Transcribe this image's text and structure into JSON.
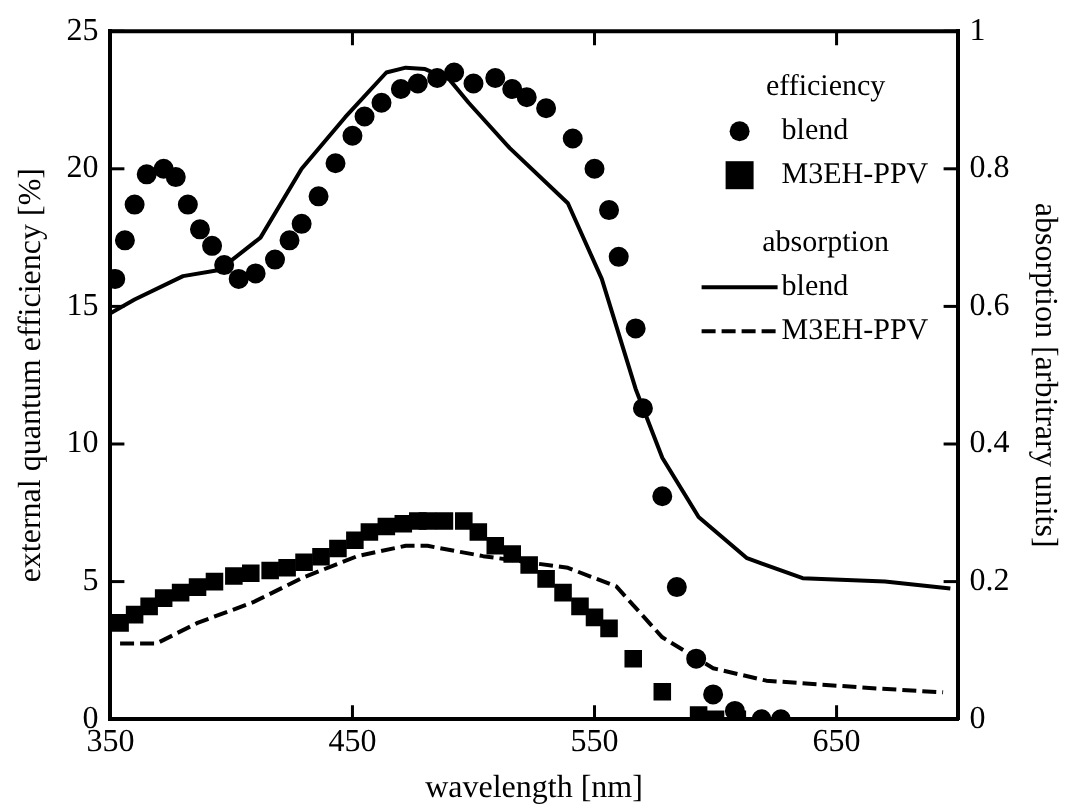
{
  "chart_data": {
    "type": "line",
    "xlabel": "wavelength [nm]",
    "ylabel": "external quantum efficiency [%]",
    "y2label": "absorption [arbitrary units]",
    "xlim": [
      350,
      700
    ],
    "xticks": [
      350,
      450,
      550,
      650
    ],
    "ylim": [
      0,
      25
    ],
    "yticks": [
      0,
      5,
      10,
      15,
      20,
      25
    ],
    "y2lim": [
      0,
      1
    ],
    "y2ticks": [
      0,
      0.2,
      0.4,
      0.6,
      0.8,
      1
    ],
    "legend": "top right",
    "annotations": [
      "efficiency",
      "absorption"
    ],
    "grid": false,
    "series": [
      {
        "name": "blend",
        "type": "scatter",
        "marker": "circle",
        "color": "#000000",
        "x": [
          352,
          356,
          360,
          365,
          372,
          377,
          382,
          387,
          392,
          397,
          403,
          410,
          418,
          424,
          429,
          436,
          443,
          450,
          455,
          462,
          470,
          477,
          485,
          492,
          500,
          509,
          516,
          522,
          530,
          541,
          550,
          556,
          560,
          567,
          570,
          578,
          584,
          592,
          599,
          608,
          619,
          627
        ],
        "values": [
          16.0,
          17.4,
          18.7,
          19.8,
          20.0,
          19.7,
          18.7,
          17.8,
          17.2,
          16.5,
          16.0,
          16.2,
          16.7,
          17.4,
          18.0,
          19.0,
          20.2,
          21.2,
          21.9,
          22.4,
          22.9,
          23.1,
          23.3,
          23.5,
          23.1,
          23.3,
          22.9,
          22.6,
          22.2,
          21.1,
          20.0,
          18.5,
          16.8,
          14.2,
          11.3,
          8.1,
          4.8,
          2.2,
          0.9,
          0.3,
          0.0,
          0.0
        ]
      },
      {
        "name": "M3EH-PPV",
        "type": "scatter",
        "marker": "square",
        "color": "#000000",
        "x": [
          354,
          360,
          366,
          372,
          379,
          386,
          393,
          401,
          408,
          416,
          423,
          430,
          437,
          444,
          451,
          457,
          464,
          471,
          477,
          481,
          488,
          496,
          502,
          509,
          516,
          523,
          530,
          537,
          544,
          550,
          556,
          566,
          578,
          593,
          600,
          609
        ],
        "values": [
          3.5,
          3.8,
          4.1,
          4.4,
          4.6,
          4.8,
          5.0,
          5.2,
          5.3,
          5.4,
          5.5,
          5.7,
          5.9,
          6.2,
          6.5,
          6.8,
          7.0,
          7.1,
          7.2,
          7.2,
          7.2,
          7.2,
          6.8,
          6.3,
          6.0,
          5.6,
          5.1,
          4.6,
          4.1,
          3.7,
          3.3,
          2.2,
          1.0,
          0.15,
          0.0,
          0.0
        ]
      },
      {
        "name": "blend",
        "line_style": "solid",
        "axis": "y2",
        "color": "#000000",
        "x": [
          350,
          360,
          380,
          395,
          412,
          429,
          447,
          464,
          472,
          480,
          490,
          498,
          515,
          539,
          553,
          567,
          578,
          593,
          613,
          636,
          670,
          697
        ],
        "values": [
          0.59,
          0.61,
          0.644,
          0.653,
          0.7,
          0.8,
          0.875,
          0.94,
          0.947,
          0.945,
          0.93,
          0.896,
          0.83,
          0.75,
          0.64,
          0.48,
          0.38,
          0.294,
          0.234,
          0.205,
          0.2,
          0.19
        ]
      },
      {
        "name": "M3EH-PPV",
        "line_style": "dashed",
        "axis": "y2",
        "color": "#000000",
        "x": [
          354,
          369,
          386,
          409,
          429,
          452,
          472,
          481,
          504,
          539,
          559,
          578,
          599,
          621,
          665,
          694
        ],
        "values": [
          0.11,
          0.11,
          0.14,
          0.17,
          0.205,
          0.237,
          0.252,
          0.252,
          0.237,
          0.22,
          0.193,
          0.119,
          0.074,
          0.056,
          0.045,
          0.039
        ]
      }
    ]
  }
}
